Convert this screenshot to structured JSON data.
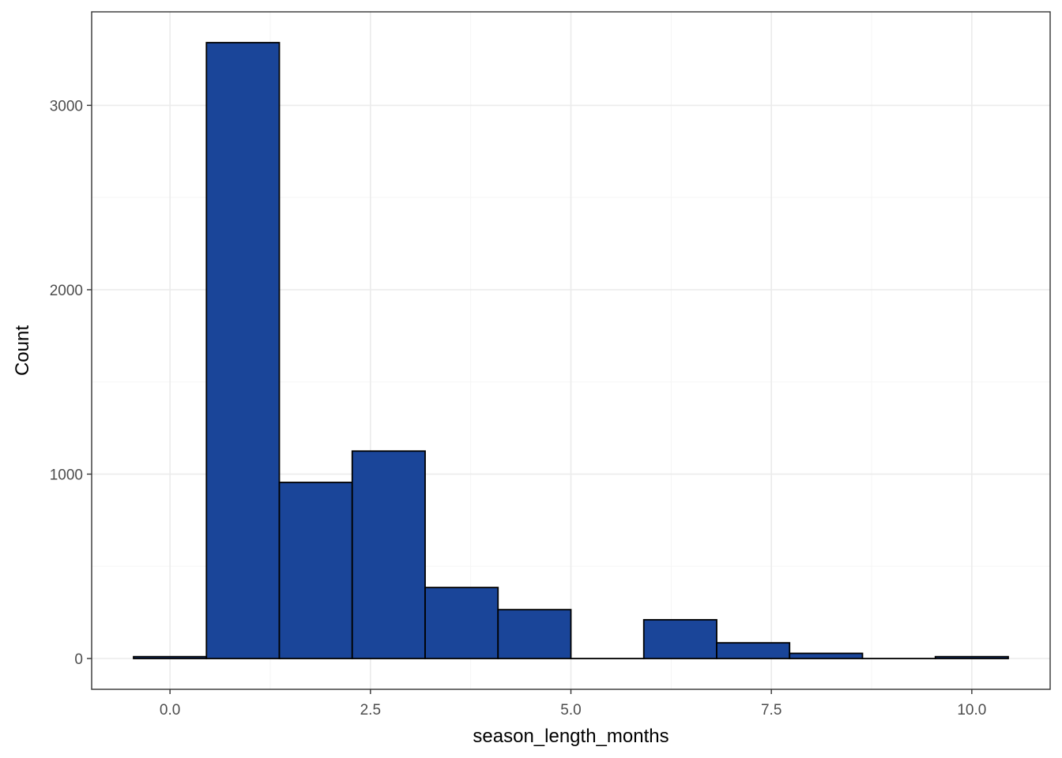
{
  "chart_data": {
    "type": "bar",
    "subtype": "histogram",
    "title": "",
    "xlabel": "season_length_months",
    "ylabel": "Count",
    "bin_width": 0.9090909,
    "bins": [
      {
        "x0": -0.4545,
        "x1": 0.4545,
        "count": 10
      },
      {
        "x0": 0.4545,
        "x1": 1.3636,
        "count": 3340
      },
      {
        "x0": 1.3636,
        "x1": 2.2727,
        "count": 955
      },
      {
        "x0": 2.2727,
        "x1": 3.1818,
        "count": 1125
      },
      {
        "x0": 3.1818,
        "x1": 4.0909,
        "count": 385
      },
      {
        "x0": 4.0909,
        "x1": 5.0,
        "count": 265
      },
      {
        "x0": 5.0,
        "x1": 5.9091,
        "count": 0
      },
      {
        "x0": 5.9091,
        "x1": 6.8182,
        "count": 210
      },
      {
        "x0": 6.8182,
        "x1": 7.7273,
        "count": 85
      },
      {
        "x0": 7.7273,
        "x1": 8.6364,
        "count": 28
      },
      {
        "x0": 8.6364,
        "x1": 9.5455,
        "count": 0
      },
      {
        "x0": 9.5455,
        "x1": 10.4545,
        "count": 10
      }
    ],
    "xlim": [
      -0.977,
      10.977
    ],
    "ylim": [
      -167,
      3507
    ],
    "x_ticks": [
      0,
      2.5,
      5,
      7.5,
      10
    ],
    "x_tick_labels": [
      "0.0",
      "2.5",
      "5.0",
      "7.5",
      "10.0"
    ],
    "x_minor_ticks": [
      1.25,
      3.75,
      6.25,
      8.75
    ],
    "y_ticks": [
      0,
      1000,
      2000,
      3000
    ],
    "y_tick_labels": [
      "0",
      "1000",
      "2000",
      "3000"
    ],
    "y_minor_ticks": [
      500,
      1500,
      2500
    ],
    "grid": true,
    "legend": "none",
    "colors": {
      "bar_fill": "#1a4599",
      "bar_stroke": "#000000",
      "grid_major": "#ebebeb",
      "grid_minor": "#f5f5f5",
      "panel_border": "#333333",
      "tick_text": "#4d4d4d"
    }
  }
}
